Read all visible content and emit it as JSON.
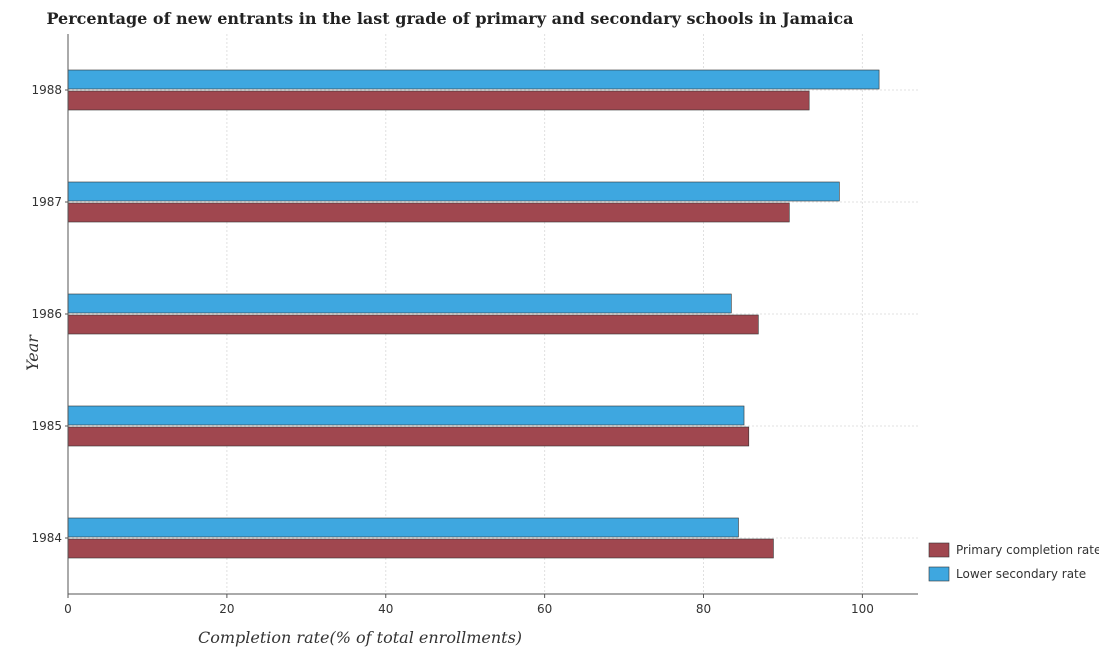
{
  "chart_data": {
    "type": "bar",
    "orientation": "horizontal",
    "title": "Percentage of new entrants in the last grade of primary  and secondary schools in Jamaica",
    "xlabel": "Completion rate(% of total enrollments)",
    "ylabel": "Year",
    "categories": [
      "1984",
      "1985",
      "1986",
      "1987",
      "1988"
    ],
    "xlim": [
      0,
      107
    ],
    "xticks": [
      0,
      20,
      40,
      60,
      80,
      100
    ],
    "grid": true,
    "legend_position": "bottom-right",
    "series": [
      {
        "name": "Primary completion rate",
        "color": "#a0474f",
        "values": [
          88.8,
          85.7,
          86.9,
          90.8,
          93.3
        ]
      },
      {
        "name": "Lower secondary rate",
        "color": "#3ea7e0",
        "values": [
          84.4,
          85.1,
          83.5,
          97.1,
          102.1
        ]
      }
    ]
  }
}
